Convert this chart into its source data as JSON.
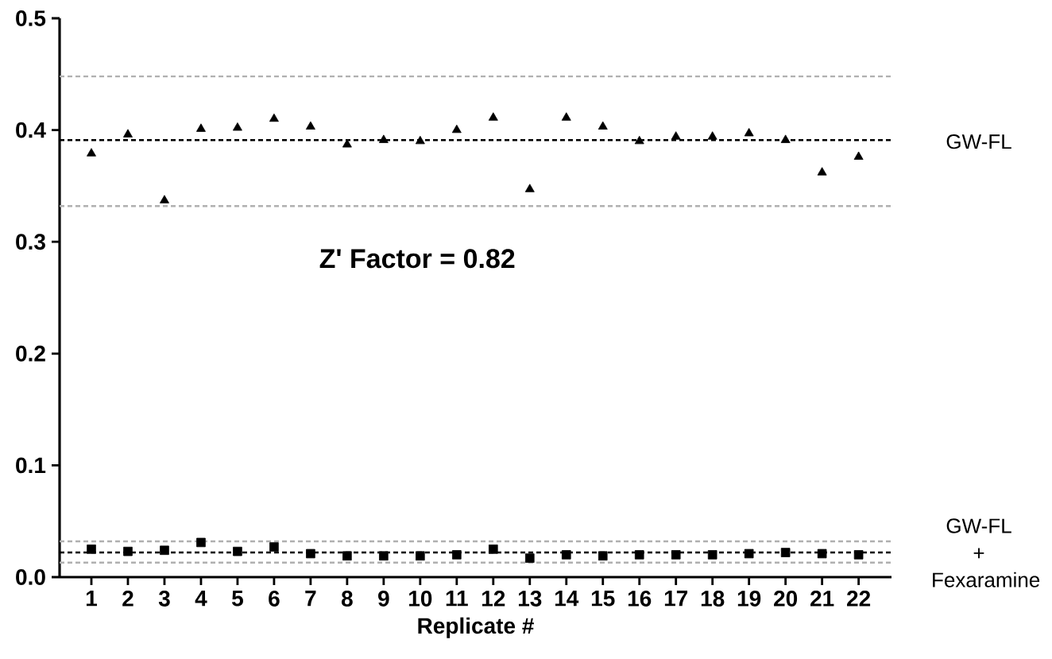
{
  "chart_data": {
    "type": "scatter",
    "xlabel": "Replicate #",
    "categories": [
      "1",
      "2",
      "3",
      "4",
      "5",
      "6",
      "7",
      "8",
      "9",
      "10",
      "11",
      "12",
      "13",
      "14",
      "15",
      "16",
      "17",
      "18",
      "19",
      "20",
      "21",
      "22"
    ],
    "series": [
      {
        "name": "GW-FL",
        "color": "#000000",
        "marker": "triangle",
        "values": [
          0.379,
          0.396,
          0.337,
          0.401,
          0.402,
          0.41,
          0.403,
          0.387,
          0.391,
          0.39,
          0.4,
          0.411,
          0.347,
          0.411,
          0.403,
          0.39,
          0.394,
          0.394,
          0.397,
          0.391,
          0.362,
          0.376
        ]
      },
      {
        "name": "GW-FL + Fexaramine",
        "color": "#000000",
        "marker": "square",
        "values": [
          0.025,
          0.023,
          0.024,
          0.031,
          0.023,
          0.027,
          0.021,
          0.019,
          0.019,
          0.019,
          0.02,
          0.025,
          0.017,
          0.02,
          0.019,
          0.02,
          0.02,
          0.02,
          0.021,
          0.022,
          0.021,
          0.02
        ]
      }
    ],
    "ylim": [
      0,
      0.5
    ],
    "yticks": [
      {
        "value": 0,
        "label": "0.0"
      },
      0.1,
      0.2,
      0.3,
      0.4,
      0.5
    ],
    "ref_lines": [
      {
        "axis": "y",
        "value": 0.448,
        "color": "#b0b0b0",
        "line_style": "dashed"
      },
      {
        "axis": "y",
        "value": 0.391,
        "color": "#000000",
        "line_style": "dashed"
      },
      {
        "axis": "y",
        "value": 0.332,
        "color": "#b0b0b0",
        "line_style": "dashed"
      },
      {
        "axis": "y",
        "value": 0.032,
        "color": "#b0b0b0",
        "line_style": "dashed"
      },
      {
        "axis": "y",
        "value": 0.022,
        "color": "#000000",
        "line_style": "dashed"
      },
      {
        "axis": "y",
        "value": 0.013,
        "color": "#b0b0b0",
        "line_style": "dashed"
      }
    ],
    "annotations": [
      "Z' Factor = 0.82"
    ]
  }
}
